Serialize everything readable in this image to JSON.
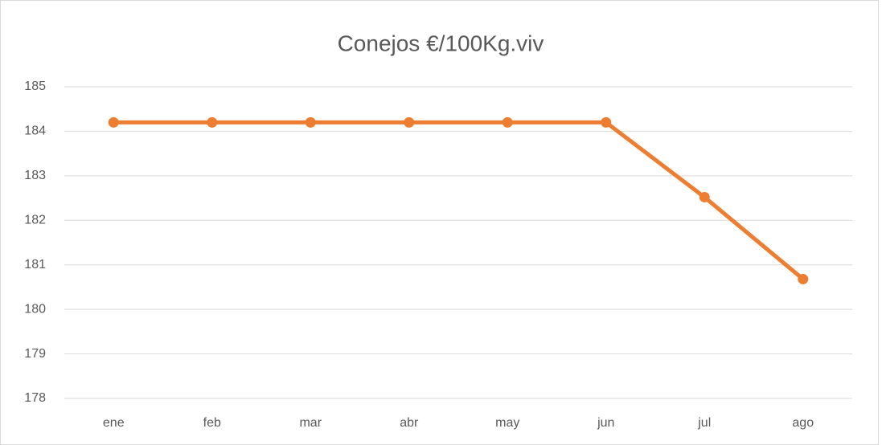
{
  "chart_data": {
    "type": "line",
    "title": "Conejos €/100Kg.viv",
    "categories": [
      "ene",
      "feb",
      "mar",
      "abr",
      "may",
      "jun",
      "jul",
      "ago"
    ],
    "series": [
      {
        "name": "Conejos €/100Kg.viv",
        "color": "#ed7d31",
        "values": [
          184.2,
          184.2,
          184.2,
          184.2,
          184.2,
          184.2,
          182.52,
          180.68
        ]
      }
    ],
    "ylim": [
      178,
      185
    ],
    "yticks": [
      178,
      179,
      180,
      181,
      182,
      183,
      184,
      185
    ],
    "grid": true
  }
}
